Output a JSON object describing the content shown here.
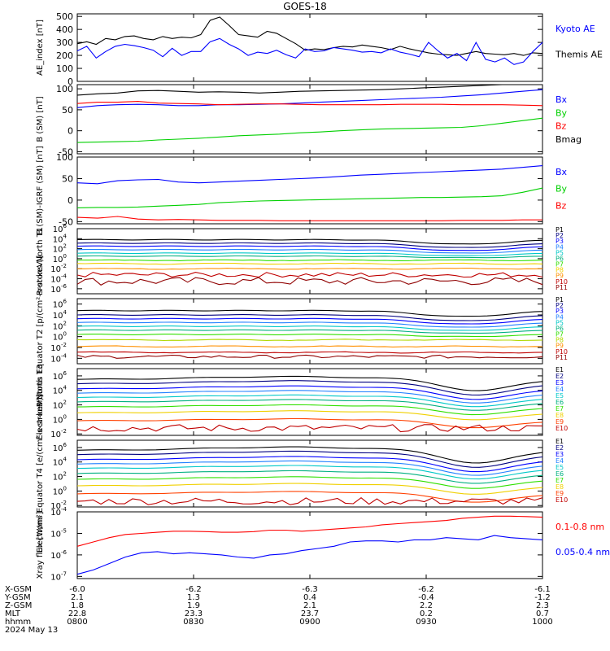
{
  "title": "GOES-18",
  "colors": {
    "black": "#000000",
    "blue": "#0000ff",
    "green": "#00d000",
    "red": "#ff0000",
    "navy": "#000080",
    "azure": "#2080ff",
    "cyan": "#00c8c8",
    "teal": "#00b080",
    "lime": "#30e000",
    "yellowgreen": "#b0d800",
    "yellow": "#f0d000",
    "orange": "#ff9000",
    "redorange": "#ff4000",
    "darkred": "#c00000",
    "maroon": "#900000"
  },
  "chart_data": [
    {
      "type": "line",
      "ylabel": "AE_index [nT]",
      "yticks": [
        "0",
        "100",
        "200",
        "300",
        "400",
        "500"
      ],
      "ylim": [
        0,
        520
      ],
      "legend": [
        "Kyoto AE",
        "Themis AE"
      ],
      "series": [
        {
          "name": "Themis AE",
          "color": "black",
          "values": [
            290,
            305,
            285,
            330,
            320,
            345,
            350,
            330,
            320,
            345,
            330,
            340,
            335,
            360,
            470,
            495,
            430,
            360,
            350,
            340,
            385,
            370,
            330,
            290,
            240,
            250,
            245,
            260,
            270,
            265,
            280,
            270,
            260,
            245,
            270,
            250,
            235,
            220,
            210,
            205,
            200,
            215,
            230,
            215,
            210,
            205,
            215,
            200,
            220,
            215
          ]
        },
        {
          "name": "Kyoto AE",
          "color": "blue",
          "values": [
            235,
            270,
            180,
            230,
            270,
            285,
            275,
            260,
            240,
            190,
            255,
            200,
            230,
            230,
            305,
            330,
            285,
            250,
            200,
            225,
            215,
            240,
            205,
            180,
            250,
            230,
            235,
            260,
            250,
            240,
            225,
            230,
            220,
            250,
            225,
            210,
            190,
            300,
            235,
            180,
            215,
            160,
            300,
            170,
            150,
            180,
            130,
            150,
            230,
            300
          ]
        }
      ]
    },
    {
      "type": "line",
      "ylabel": "B (SM) [nT]",
      "yticks": [
        "-50",
        "0",
        "50",
        "100"
      ],
      "ylim": [
        -55,
        110
      ],
      "legend": [
        "Bx",
        "By",
        "Bz",
        "Bmag"
      ],
      "series": [
        {
          "name": "Bmag",
          "color": "black",
          "values": [
            85,
            88,
            90,
            95,
            96,
            94,
            92,
            93,
            92,
            90,
            92,
            94,
            95,
            96,
            97,
            98,
            100,
            102,
            104,
            106,
            108,
            110,
            112,
            115
          ]
        },
        {
          "name": "Bx",
          "color": "blue",
          "values": [
            55,
            60,
            62,
            63,
            62,
            60,
            60,
            62,
            62,
            63,
            64,
            66,
            68,
            70,
            72,
            74,
            76,
            78,
            80,
            83,
            86,
            90,
            94,
            98
          ]
        },
        {
          "name": "Bz",
          "color": "red",
          "values": [
            65,
            68,
            68,
            70,
            66,
            65,
            64,
            62,
            63,
            64,
            64,
            63,
            62,
            62,
            62,
            62,
            63,
            63,
            63,
            62,
            62,
            62,
            61,
            60
          ]
        },
        {
          "name": "By",
          "color": "green",
          "values": [
            -28,
            -27,
            -26,
            -25,
            -22,
            -20,
            -18,
            -15,
            -12,
            -10,
            -8,
            -5,
            -3,
            0,
            2,
            4,
            5,
            6,
            7,
            8,
            12,
            18,
            24,
            30
          ]
        }
      ]
    },
    {
      "type": "line",
      "ylabel": "B (SM)-IGRF (SM) [nT]",
      "yticks": [
        "-50",
        "0",
        "50",
        "100"
      ],
      "ylim": [
        -55,
        100
      ],
      "legend": [
        "Bx",
        "By",
        "Bz"
      ],
      "series": [
        {
          "name": "Bx",
          "color": "blue",
          "values": [
            40,
            38,
            45,
            47,
            48,
            42,
            40,
            42,
            44,
            46,
            48,
            50,
            52,
            55,
            58,
            60,
            62,
            64,
            66,
            68,
            70,
            72,
            76,
            80
          ]
        },
        {
          "name": "By",
          "color": "green",
          "values": [
            -18,
            -17,
            -17,
            -16,
            -14,
            -12,
            -10,
            -6,
            -4,
            -2,
            -1,
            0,
            1,
            2,
            3,
            4,
            5,
            6,
            6,
            7,
            8,
            10,
            18,
            28
          ]
        },
        {
          "name": "Bz",
          "color": "red",
          "values": [
            -40,
            -42,
            -38,
            -44,
            -46,
            -45,
            -46,
            -47,
            -47,
            -47,
            -48,
            -48,
            -48,
            -48,
            -48,
            -48,
            -48,
            -48,
            -48,
            -47,
            -47,
            -47,
            -46,
            -46
          ]
        }
      ]
    },
    {
      "type": "line",
      "ylabel": "Protons North T1",
      "log": true,
      "yticks_exp": [
        -6,
        -4,
        -2,
        0,
        2,
        4,
        6
      ],
      "ylim_exp": [
        -7,
        6
      ],
      "legend": [
        "P1",
        "P2",
        "P3",
        "P4",
        "P5",
        "P6",
        "P7",
        "P8",
        "P9",
        "P10",
        "P11"
      ],
      "series": [
        {
          "name": "P1",
          "color": "black",
          "exp": 3.8,
          "shape": "dip",
          "amp": 0.9
        },
        {
          "name": "P2",
          "color": "navy",
          "exp": 3.1,
          "shape": "dip",
          "amp": 0.9
        },
        {
          "name": "P3",
          "color": "blue",
          "exp": 2.5,
          "shape": "dip",
          "amp": 0.9
        },
        {
          "name": "P4",
          "color": "azure",
          "exp": 1.8,
          "shape": "dip",
          "amp": 0.7
        },
        {
          "name": "P5",
          "color": "cyan",
          "exp": 1.1,
          "shape": "dip",
          "amp": 0.5
        },
        {
          "name": "P6",
          "color": "teal",
          "exp": 0.5,
          "shape": "dip",
          "amp": 0.3
        },
        {
          "name": "P7",
          "color": "lime",
          "exp": -0.3,
          "shape": "flat",
          "amp": 0.2
        },
        {
          "name": "P8",
          "color": "yellow",
          "exp": -1.0,
          "shape": "flat",
          "amp": 0.2
        },
        {
          "name": "P9",
          "color": "orange",
          "exp": -2.0,
          "shape": "flat",
          "amp": 0.2
        },
        {
          "name": "P10",
          "color": "darkred",
          "exp": -3.2,
          "shape": "noisy",
          "amp": 0.5
        },
        {
          "name": "P11",
          "color": "maroon",
          "exp": -4.5,
          "shape": "noisy",
          "amp": 0.8
        }
      ]
    },
    {
      "type": "line",
      "ylabel": "Protons Equator T2 [p/(cm²-s-sr-keV)]",
      "log": true,
      "yticks_exp": [
        -4,
        -2,
        0,
        2,
        4,
        6
      ],
      "ylim_exp": [
        -5,
        7
      ],
      "legend": [
        "P1",
        "P2",
        "P3",
        "P4",
        "P5",
        "P6",
        "P7",
        "P8",
        "P9",
        "P10",
        "P11"
      ],
      "series": [
        {
          "name": "P1",
          "color": "black",
          "exp": 4.8,
          "shape": "dip",
          "amp": 1.1
        },
        {
          "name": "P2",
          "color": "navy",
          "exp": 4.0,
          "shape": "dip",
          "amp": 1.1
        },
        {
          "name": "P3",
          "color": "blue",
          "exp": 3.3,
          "shape": "dip",
          "amp": 1.0
        },
        {
          "name": "P4",
          "color": "azure",
          "exp": 2.6,
          "shape": "dip",
          "amp": 0.9
        },
        {
          "name": "P5",
          "color": "cyan",
          "exp": 1.9,
          "shape": "dip",
          "amp": 0.8
        },
        {
          "name": "P6",
          "color": "teal",
          "exp": 1.2,
          "shape": "dip",
          "amp": 0.6
        },
        {
          "name": "P7",
          "color": "lime",
          "exp": 0.4,
          "shape": "dip",
          "amp": 0.4
        },
        {
          "name": "P8",
          "color": "yellowgreen",
          "exp": -0.6,
          "shape": "flat",
          "amp": 0.2
        },
        {
          "name": "P9",
          "color": "orange",
          "exp": -1.8,
          "shape": "flat",
          "amp": 0.2
        },
        {
          "name": "P10",
          "color": "darkred",
          "exp": -2.9,
          "shape": "flat",
          "amp": 0.2
        },
        {
          "name": "P11",
          "color": "maroon",
          "exp": -3.7,
          "shape": "noisy",
          "amp": 0.3
        }
      ]
    },
    {
      "type": "line",
      "ylabel": "Electrons North T3",
      "log": true,
      "yticks_exp": [
        -2,
        0,
        2,
        4,
        6
      ],
      "ylim_exp": [
        -2.2,
        7
      ],
      "legend": [
        "E1",
        "E2",
        "E3",
        "E4",
        "E5",
        "E6",
        "E7",
        "E8",
        "E9",
        "E10"
      ],
      "series": [
        {
          "name": "E1",
          "color": "black",
          "exp": 5.5,
          "shape": "bump",
          "amp": 1.6
        },
        {
          "name": "E2",
          "color": "navy",
          "exp": 4.9,
          "shape": "bump",
          "amp": 1.6
        },
        {
          "name": "E3",
          "color": "blue",
          "exp": 4.2,
          "shape": "bump",
          "amp": 1.5
        },
        {
          "name": "E4",
          "color": "azure",
          "exp": 3.6,
          "shape": "bump",
          "amp": 1.4
        },
        {
          "name": "E5",
          "color": "cyan",
          "exp": 3.0,
          "shape": "bump",
          "amp": 1.3
        },
        {
          "name": "E6",
          "color": "teal",
          "exp": 2.4,
          "shape": "bump",
          "amp": 1.2
        },
        {
          "name": "E7",
          "color": "lime",
          "exp": 1.7,
          "shape": "bump",
          "amp": 1.1
        },
        {
          "name": "E8",
          "color": "yellow",
          "exp": 0.9,
          "shape": "bump",
          "amp": 1.0
        },
        {
          "name": "E9",
          "color": "redorange",
          "exp": -0.2,
          "shape": "bump",
          "amp": 1.0
        },
        {
          "name": "E10",
          "color": "darkred",
          "exp": -1.2,
          "shape": "noisy",
          "amp": 0.5
        }
      ]
    },
    {
      "type": "line",
      "ylabel": "Electrons Equator T4 [e/(cm²-s-sr-keV)]",
      "log": true,
      "yticks_exp": [
        -2,
        0,
        2,
        4,
        6
      ],
      "ylim_exp": [
        -2.2,
        7
      ],
      "legend": [
        "E1",
        "E2",
        "E3",
        "E4",
        "E5",
        "E6",
        "E7",
        "E8",
        "E9",
        "E10"
      ],
      "series": [
        {
          "name": "E1",
          "color": "black",
          "exp": 5.6,
          "shape": "bump",
          "amp": 1.8
        },
        {
          "name": "E2",
          "color": "navy",
          "exp": 5.0,
          "shape": "bump",
          "amp": 1.8
        },
        {
          "name": "E3",
          "color": "blue",
          "exp": 4.3,
          "shape": "bump",
          "amp": 1.7
        },
        {
          "name": "E4",
          "color": "azure",
          "exp": 3.7,
          "shape": "bump",
          "amp": 1.6
        },
        {
          "name": "E5",
          "color": "cyan",
          "exp": 3.1,
          "shape": "bump",
          "amp": 1.5
        },
        {
          "name": "E6",
          "color": "teal",
          "exp": 2.4,
          "shape": "bump",
          "amp": 1.4
        },
        {
          "name": "E7",
          "color": "lime",
          "exp": 1.6,
          "shape": "bump",
          "amp": 1.3
        },
        {
          "name": "E8",
          "color": "yellow",
          "exp": 0.7,
          "shape": "bump",
          "amp": 1.2
        },
        {
          "name": "E9",
          "color": "redorange",
          "exp": -0.4,
          "shape": "bump",
          "amp": 1.2
        },
        {
          "name": "E10",
          "color": "darkred",
          "exp": -1.4,
          "shape": "noisy",
          "amp": 0.5
        }
      ]
    },
    {
      "type": "line",
      "ylabel": "Xray flux [W/m²]",
      "log": true,
      "yticks_exp": [
        -7,
        -6,
        -5,
        -4
      ],
      "ylim_exp": [
        -7.1,
        -4
      ],
      "legend": [
        "0.1-0.8 nm",
        "0.05-0.4 nm"
      ],
      "series": [
        {
          "name": "0.1-0.8 nm",
          "color": "red",
          "values": [
            -5.6,
            -5.4,
            -5.2,
            -5.05,
            -5.0,
            -4.95,
            -4.9,
            -4.9,
            -4.92,
            -4.95,
            -4.95,
            -4.92,
            -4.85,
            -4.85,
            -4.9,
            -4.85,
            -4.8,
            -4.75,
            -4.7,
            -4.6,
            -4.55,
            -4.5,
            -4.45,
            -4.4,
            -4.3,
            -4.25,
            -4.2,
            -4.2,
            -4.22,
            -4.25
          ]
        },
        {
          "name": "0.05-0.4 nm",
          "color": "blue",
          "values": [
            -6.9,
            -6.7,
            -6.4,
            -6.1,
            -5.9,
            -5.85,
            -5.95,
            -5.9,
            -5.95,
            -6.0,
            -6.1,
            -6.15,
            -6.0,
            -5.95,
            -5.8,
            -5.7,
            -5.6,
            -5.4,
            -5.35,
            -5.35,
            -5.4,
            -5.3,
            -5.3,
            -5.2,
            -5.25,
            -5.3,
            -5.1,
            -5.2,
            -5.25,
            -5.3
          ]
        }
      ]
    }
  ],
  "x_axis": {
    "row_labels": [
      "X-GSM",
      "Y-GSM",
      "Z-GSM",
      "MLT",
      "hhmm",
      "2024 May 13"
    ],
    "columns": [
      {
        "x_gsm": "-6.0",
        "y_gsm": "2.1",
        "z_gsm": "1.8",
        "mlt": "22.8",
        "hhmm": "0800"
      },
      {
        "x_gsm": "-6.2",
        "y_gsm": "1.3",
        "z_gsm": "1.9",
        "mlt": "23.3",
        "hhmm": "0830"
      },
      {
        "x_gsm": "-6.3",
        "y_gsm": "0.4",
        "z_gsm": "2.1",
        "mlt": "23.7",
        "hhmm": "0900"
      },
      {
        "x_gsm": "-6.2",
        "y_gsm": "-0.4",
        "z_gsm": "2.2",
        "mlt": "0.2",
        "hhmm": "0930"
      },
      {
        "x_gsm": "-6.1",
        "y_gsm": "-1.2",
        "z_gsm": "2.3",
        "mlt": "0.7",
        "hhmm": "1000"
      }
    ]
  }
}
